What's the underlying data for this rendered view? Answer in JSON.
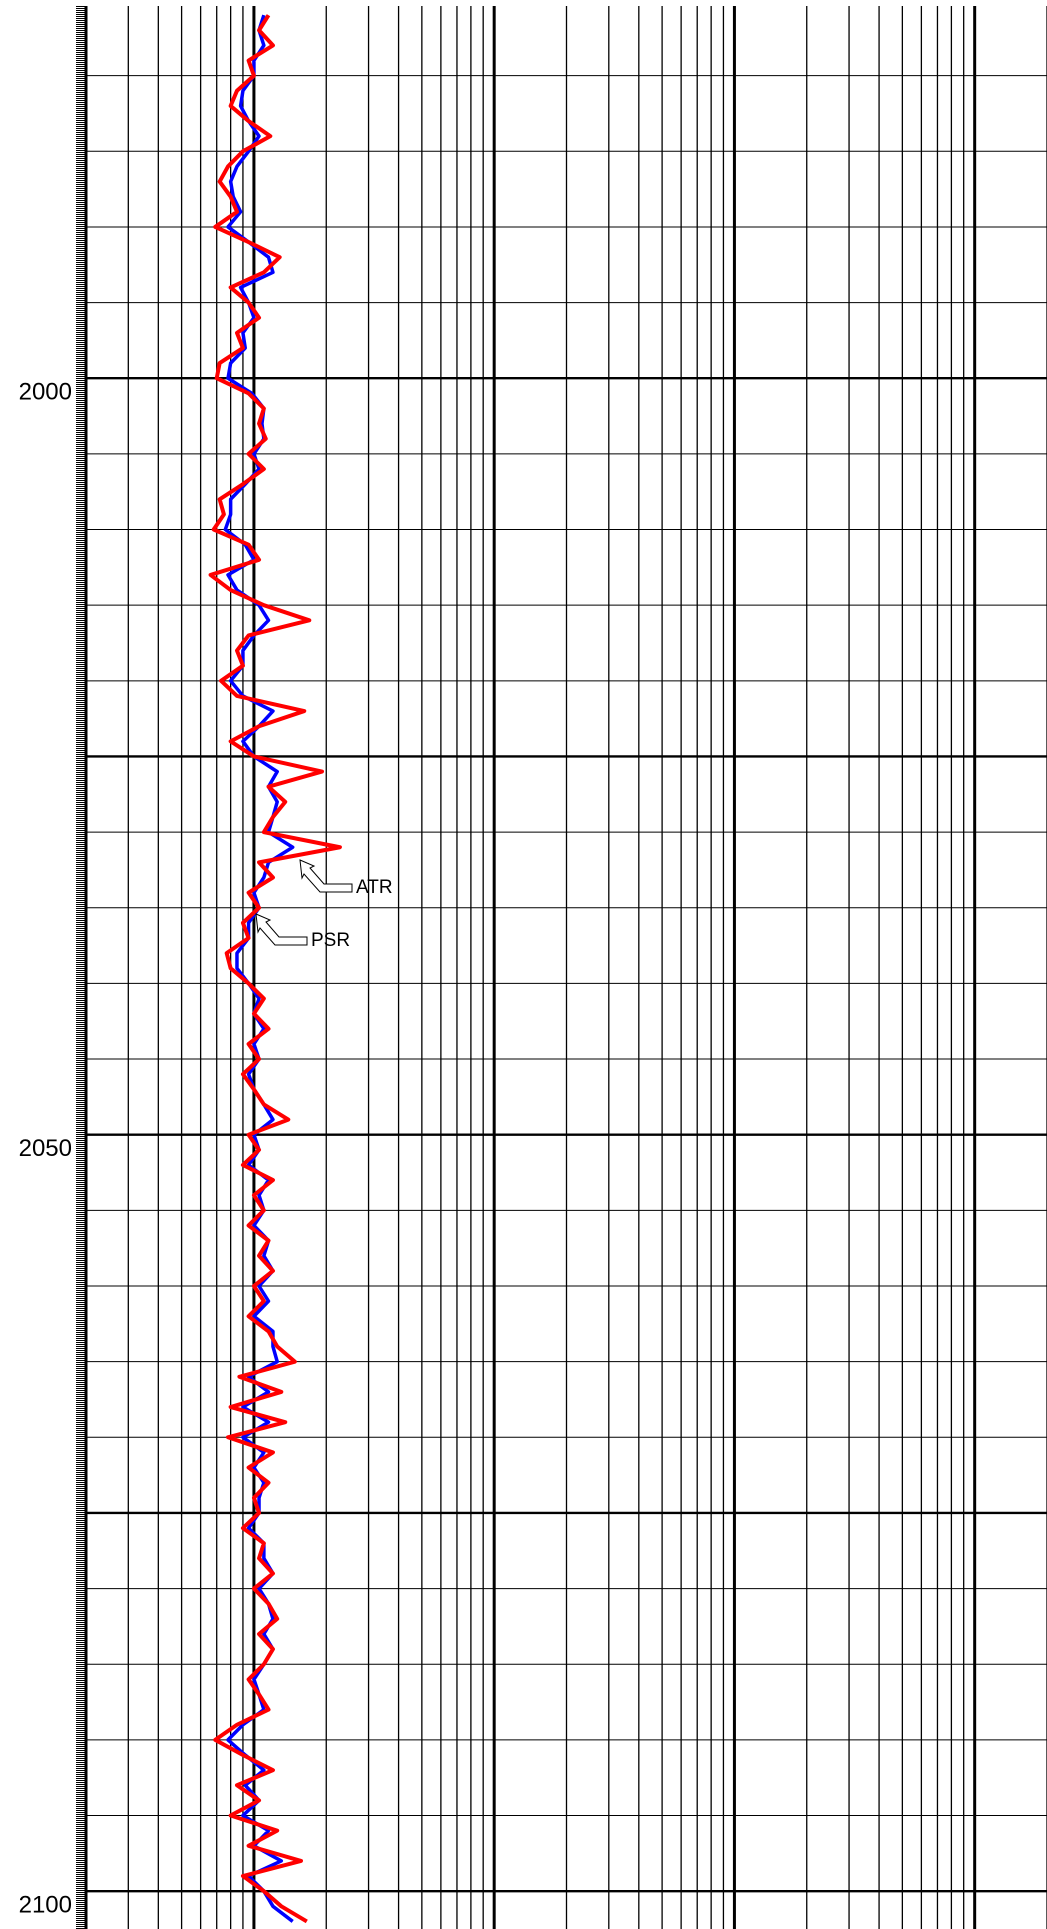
{
  "chart_data": {
    "type": "well-log",
    "xscale": "log",
    "xlim": [
      0.2,
      2000
    ],
    "xgrid": [
      0.2,
      0.3,
      0.4,
      0.5,
      0.6,
      0.7,
      0.8,
      0.9,
      1,
      2,
      3,
      4,
      5,
      6,
      7,
      8,
      9,
      10,
      20,
      30,
      40,
      50,
      60,
      70,
      80,
      90,
      100,
      200,
      300,
      400,
      500,
      600,
      700,
      800,
      900,
      1000,
      2000
    ],
    "ylim": [
      1975,
      2102.5
    ],
    "yticks": [
      2000,
      2050,
      2100
    ],
    "ygrid": [
      1980,
      1985,
      1990,
      1995,
      2000,
      2005,
      2010,
      2015,
      2020,
      2025,
      2030,
      2035,
      2040,
      2045,
      2050,
      2055,
      2060,
      2065,
      2070,
      2075,
      2080,
      2085,
      2090,
      2095,
      2100
    ],
    "depth": [
      1976,
      1977,
      1978,
      1979,
      1980,
      1981,
      1982,
      1983,
      1984,
      1985,
      1986,
      1987,
      1988,
      1989,
      1990,
      1991,
      1992,
      1993,
      1994,
      1995,
      1996,
      1997,
      1998,
      1999,
      2000,
      2001,
      2002,
      2003,
      2004,
      2005,
      2006,
      2007,
      2008,
      2009,
      2010,
      2011,
      2012,
      2013,
      2014,
      2015,
      2016,
      2017,
      2018,
      2019,
      2020,
      2021,
      2022,
      2023,
      2024,
      2025,
      2026,
      2027,
      2028,
      2029,
      2030,
      2031,
      2032,
      2033,
      2034,
      2035,
      2036,
      2037,
      2038,
      2039,
      2040,
      2041,
      2042,
      2043,
      2044,
      2045,
      2046,
      2047,
      2048,
      2049,
      2050,
      2051,
      2052,
      2053,
      2054,
      2055,
      2056,
      2057,
      2058,
      2059,
      2060,
      2061,
      2062,
      2063,
      2064,
      2065,
      2066,
      2067,
      2068,
      2069,
      2070,
      2071,
      2072,
      2073,
      2074,
      2075,
      2076,
      2077,
      2078,
      2079,
      2080,
      2081,
      2082,
      2083,
      2084,
      2085,
      2086,
      2087,
      2088,
      2089,
      2090,
      2091,
      2092,
      2093,
      2094,
      2095,
      2096,
      2097,
      2098,
      2099,
      2100,
      2101,
      2102
    ],
    "series": [
      {
        "name": "PSR",
        "color": "#0000ff",
        "values": [
          1.1,
          1.05,
          1.1,
          1.0,
          1.0,
          0.9,
          0.88,
          0.95,
          1.05,
          0.95,
          0.85,
          0.8,
          0.82,
          0.88,
          0.78,
          0.95,
          1.15,
          1.2,
          0.88,
          0.95,
          1.0,
          0.9,
          0.92,
          0.8,
          0.78,
          0.98,
          1.1,
          1.08,
          1.1,
          1.0,
          1.05,
          0.92,
          0.8,
          0.8,
          0.76,
          0.92,
          1.0,
          0.78,
          0.85,
          1.05,
          1.15,
          1.0,
          0.9,
          0.9,
          0.8,
          0.9,
          1.2,
          1.05,
          0.9,
          1.0,
          1.25,
          1.15,
          1.25,
          1.2,
          1.15,
          1.45,
          1.15,
          1.1,
          1.0,
          1.05,
          0.95,
          0.95,
          0.85,
          0.85,
          0.95,
          1.05,
          1.0,
          1.1,
          1.0,
          1.05,
          0.95,
          1.0,
          1.1,
          1.2,
          1.0,
          1.05,
          0.95,
          1.15,
          1.05,
          1.1,
          1.0,
          1.15,
          1.1,
          1.2,
          1.05,
          1.15,
          1.0,
          1.2,
          1.2,
          1.25,
          0.95,
          1.15,
          0.9,
          1.15,
          0.9,
          1.1,
          1.0,
          1.1,
          1.05,
          1.05,
          0.95,
          1.1,
          1.1,
          1.2,
          1.05,
          1.15,
          1.2,
          1.1,
          1.2,
          1.1,
          1.0,
          1.05,
          1.1,
          0.9,
          0.78,
          0.92,
          1.1,
          0.92,
          1.05,
          0.9,
          1.15,
          1.0,
          1.3,
          0.95,
          1.1,
          1.2,
          1.45
        ]
      },
      {
        "name": "ATR",
        "color": "#ff0000",
        "values": [
          1.15,
          1.05,
          1.2,
          0.95,
          1.0,
          0.85,
          0.8,
          0.95,
          1.17,
          0.9,
          0.78,
          0.72,
          0.8,
          0.85,
          0.69,
          0.95,
          1.28,
          1.1,
          0.8,
          0.95,
          1.05,
          0.85,
          0.9,
          0.72,
          0.7,
          0.95,
          1.1,
          1.05,
          1.12,
          0.95,
          1.1,
          0.9,
          0.72,
          0.75,
          0.68,
          0.95,
          1.05,
          0.66,
          0.8,
          1.1,
          1.7,
          0.95,
          0.85,
          0.9,
          0.73,
          0.85,
          1.62,
          1.05,
          0.8,
          1.0,
          1.92,
          1.15,
          1.35,
          1.2,
          1.1,
          2.28,
          1.05,
          1.2,
          0.95,
          1.05,
          0.9,
          0.95,
          0.77,
          0.8,
          0.95,
          1.1,
          1.0,
          1.15,
          0.95,
          1.05,
          0.9,
          1.0,
          1.1,
          1.39,
          0.95,
          1.05,
          0.9,
          1.2,
          1.0,
          1.1,
          0.95,
          1.15,
          1.05,
          1.2,
          1.0,
          1.1,
          0.95,
          1.15,
          1.25,
          1.48,
          0.87,
          1.3,
          0.8,
          1.35,
          0.78,
          1.2,
          0.95,
          1.15,
          1.0,
          1.05,
          0.9,
          1.1,
          1.05,
          1.2,
          1.0,
          1.15,
          1.25,
          1.05,
          1.2,
          1.1,
          0.95,
          1.05,
          1.15,
          0.85,
          0.69,
          0.9,
          1.2,
          0.85,
          1.05,
          0.8,
          1.25,
          0.95,
          1.57,
          0.9,
          1.1,
          1.3,
          1.66
        ]
      }
    ]
  }
}
